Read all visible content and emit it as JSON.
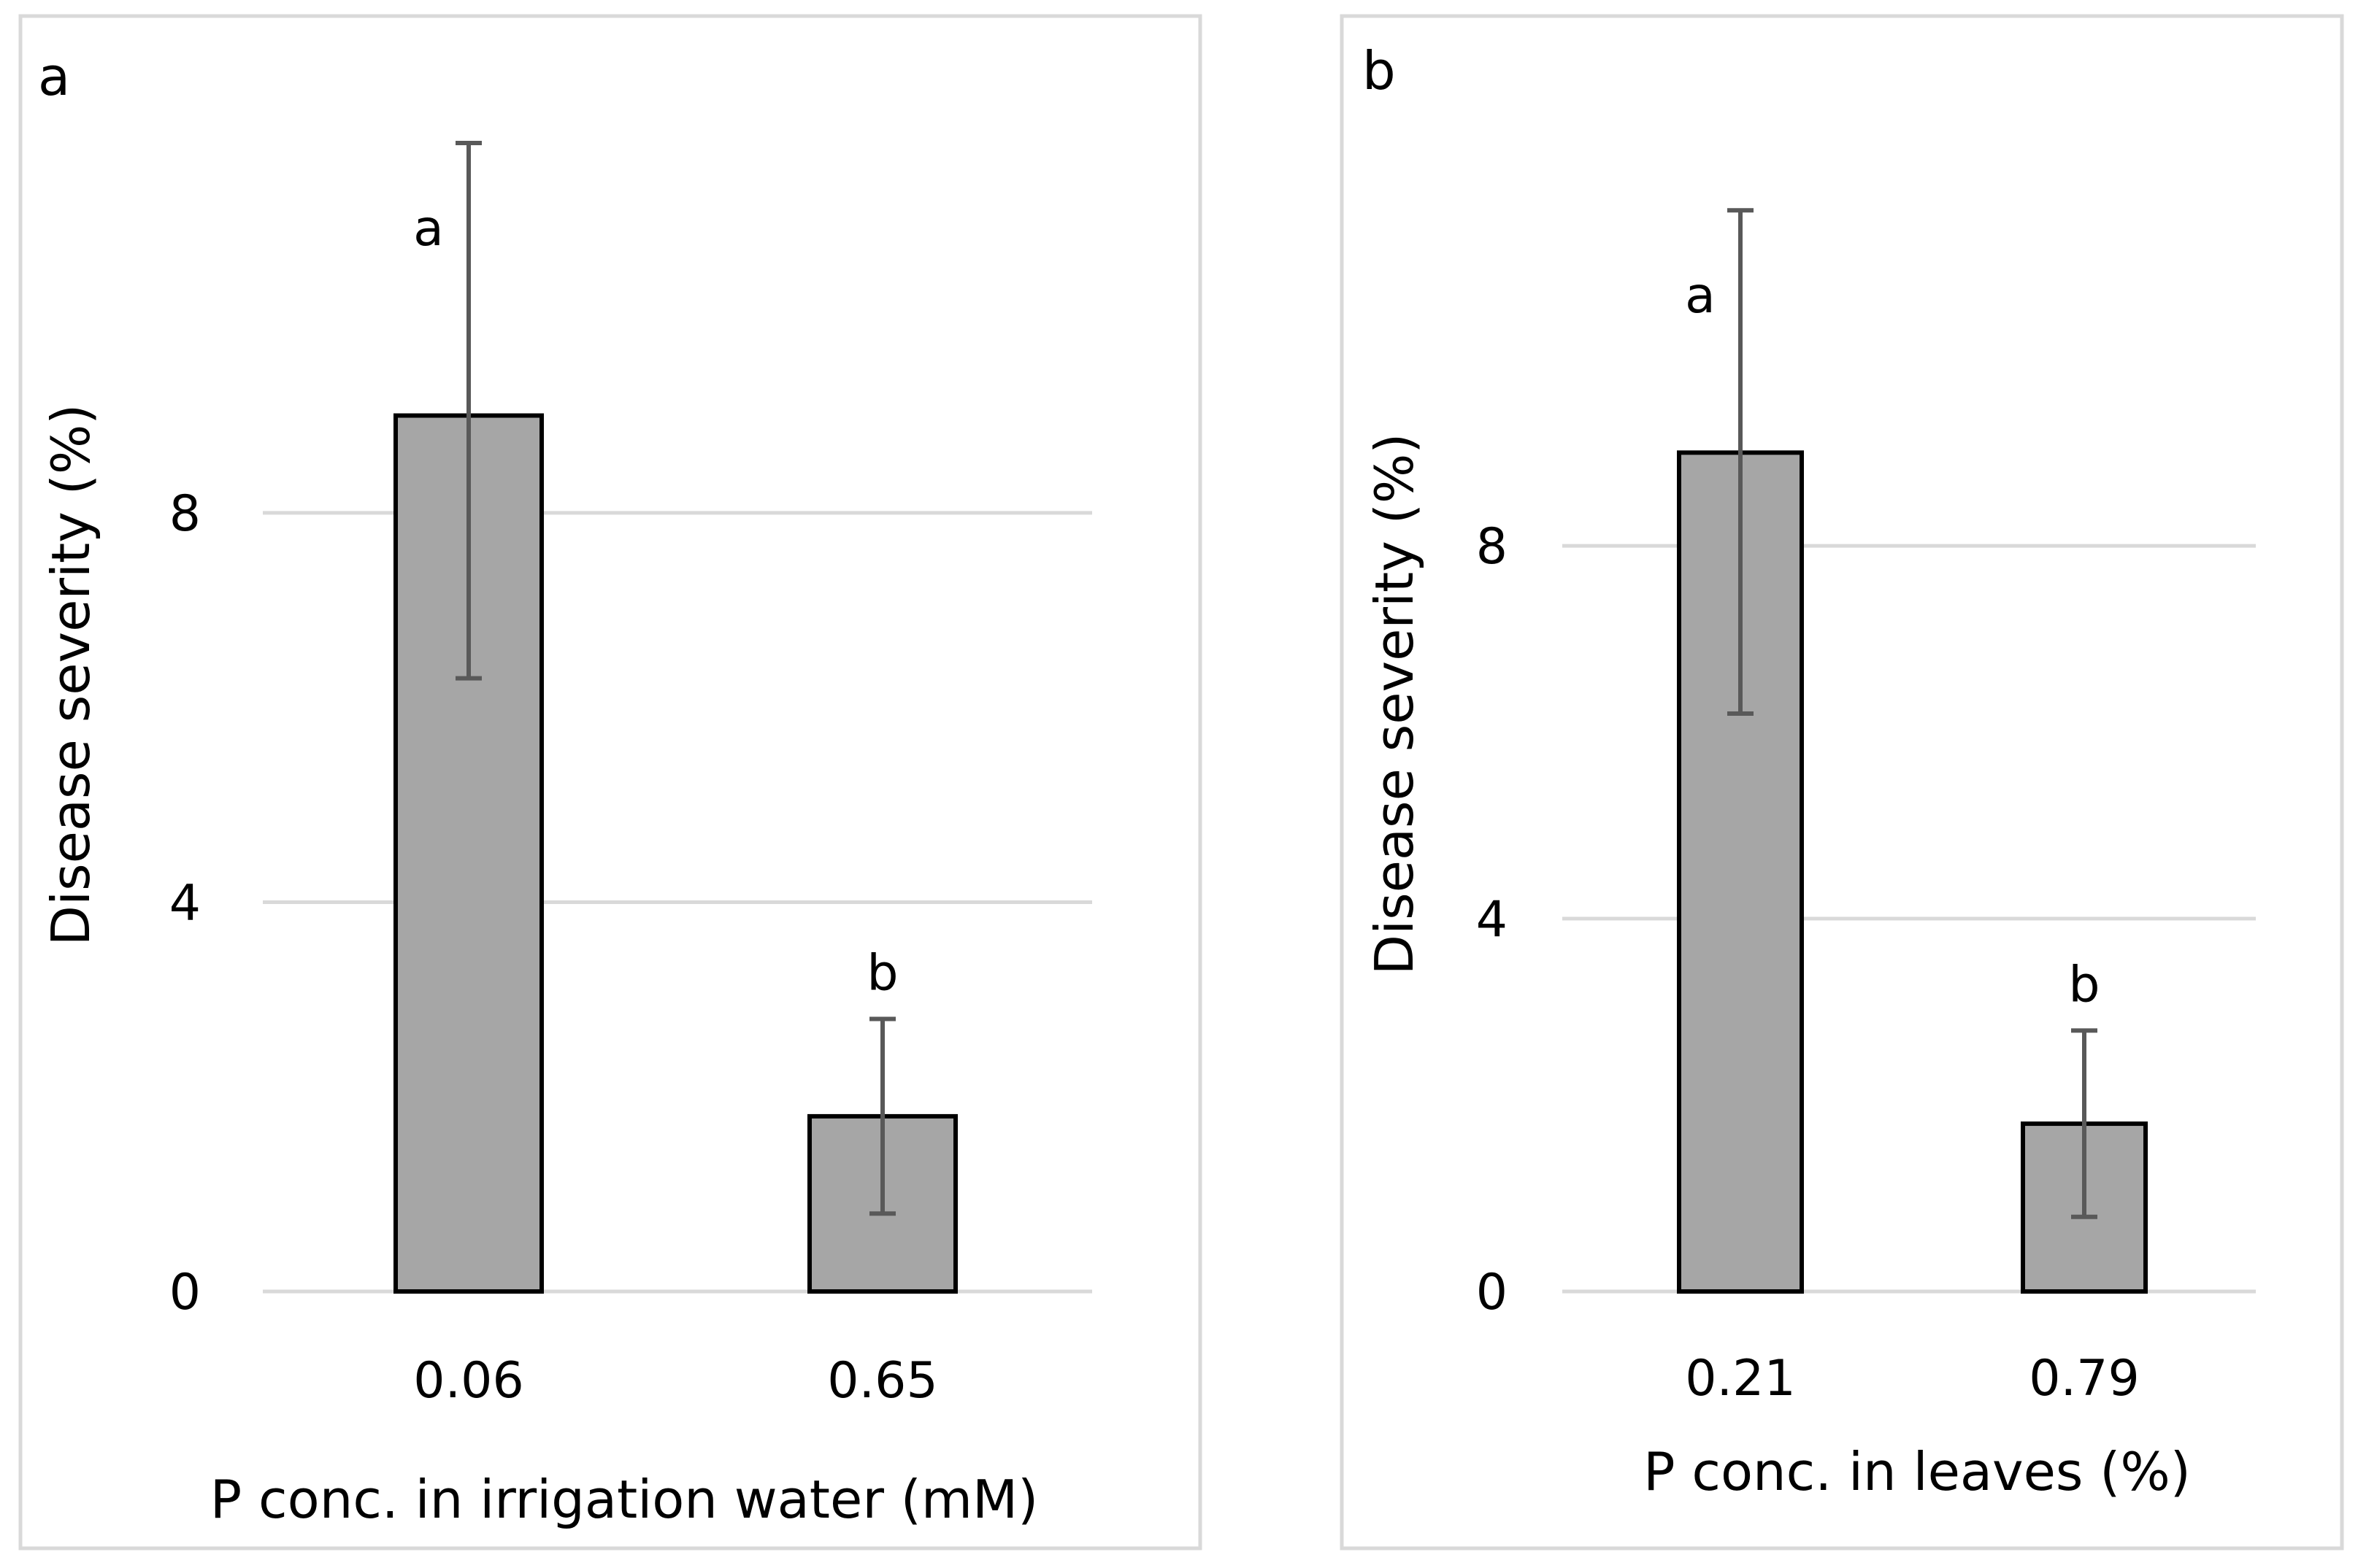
{
  "chart_data": [
    {
      "type": "bar",
      "panel_label": "a",
      "xlabel": "P conc. in irrigation water (mM)",
      "ylabel": "Disease severity (%)",
      "categories": [
        "0.06",
        "0.65"
      ],
      "values": [
        9.0,
        1.8
      ],
      "error_low": [
        6.3,
        0.8
      ],
      "error_high": [
        11.8,
        2.8
      ],
      "significance": [
        "a",
        "b"
      ],
      "yticks": [
        0,
        4,
        8
      ],
      "ylim": [
        0,
        12.4
      ],
      "grid": true,
      "bar_color": "#a6a6a6"
    },
    {
      "type": "bar",
      "panel_label": "b",
      "xlabel": "P conc. in leaves (%)",
      "ylabel": "Disease severity (%)",
      "categories": [
        "0.21",
        "0.79"
      ],
      "values": [
        9.0,
        1.8
      ],
      "error_low": [
        6.2,
        0.8
      ],
      "error_high": [
        11.6,
        2.8
      ],
      "significance": [
        "a",
        "b"
      ],
      "yticks": [
        0,
        4,
        8
      ],
      "ylim": [
        0,
        12.4
      ],
      "grid": true,
      "bar_color": "#a6a6a6"
    }
  ]
}
